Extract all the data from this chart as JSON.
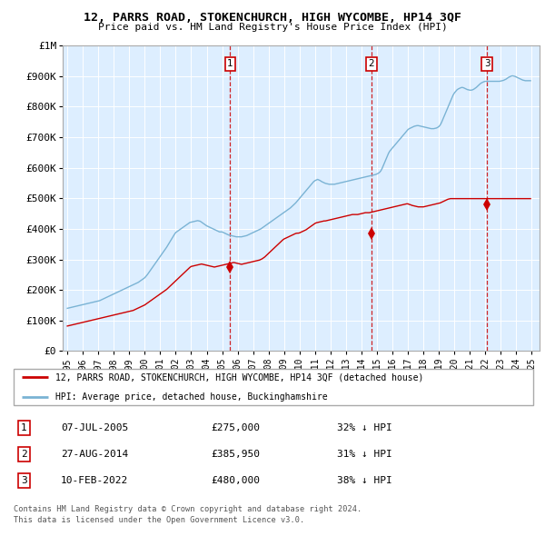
{
  "title": "12, PARRS ROAD, STOKENCHURCH, HIGH WYCOMBE, HP14 3QF",
  "subtitle": "Price paid vs. HM Land Registry's House Price Index (HPI)",
  "legend_red": "12, PARRS ROAD, STOKENCHURCH, HIGH WYCOMBE, HP14 3QF (detached house)",
  "legend_blue": "HPI: Average price, detached house, Buckinghamshire",
  "footnote1": "Contains HM Land Registry data © Crown copyright and database right 2024.",
  "footnote2": "This data is licensed under the Open Government Licence v3.0.",
  "transactions": [
    {
      "num": 1,
      "date": "07-JUL-2005",
      "price": 275000,
      "pct": "32% ↓ HPI",
      "x_year": 2005.52
    },
    {
      "num": 2,
      "date": "27-AUG-2014",
      "price": 385950,
      "pct": "31% ↓ HPI",
      "x_year": 2014.65
    },
    {
      "num": 3,
      "date": "10-FEB-2022",
      "price": 480000,
      "pct": "38% ↓ HPI",
      "x_year": 2022.12
    }
  ],
  "hpi_color": "#7ab3d4",
  "price_color": "#cc0000",
  "background_chart": "#ddeeff",
  "ylim": [
    0,
    1000000
  ],
  "yticks": [
    0,
    100000,
    200000,
    300000,
    400000,
    500000,
    600000,
    700000,
    800000,
    900000,
    1000000
  ],
  "xlim_start": 1994.7,
  "xlim_end": 2025.5,
  "hpi_monthly": {
    "start_year": 1995,
    "start_month": 1,
    "values": [
      140000,
      141000,
      142000,
      143000,
      144000,
      145000,
      146000,
      147000,
      148000,
      149000,
      150000,
      151000,
      152000,
      153000,
      154000,
      155000,
      156000,
      157000,
      158000,
      159000,
      160000,
      161000,
      162000,
      163000,
      164000,
      165000,
      167000,
      169000,
      171000,
      173000,
      175000,
      177000,
      179000,
      181000,
      183000,
      185000,
      187000,
      189000,
      191000,
      193000,
      195000,
      197000,
      199000,
      201000,
      203000,
      205000,
      207000,
      209000,
      211000,
      213000,
      215000,
      217000,
      219000,
      221000,
      223000,
      225000,
      228000,
      231000,
      234000,
      237000,
      240000,
      245000,
      250000,
      256000,
      262000,
      268000,
      274000,
      280000,
      286000,
      292000,
      298000,
      304000,
      310000,
      316000,
      322000,
      328000,
      334000,
      340000,
      347000,
      354000,
      361000,
      368000,
      375000,
      382000,
      388000,
      391000,
      394000,
      397000,
      400000,
      403000,
      406000,
      409000,
      412000,
      415000,
      418000,
      421000,
      422000,
      423000,
      424000,
      425000,
      426000,
      427000,
      426000,
      425000,
      422000,
      419000,
      416000,
      413000,
      410000,
      408000,
      406000,
      404000,
      402000,
      400000,
      398000,
      396000,
      394000,
      392000,
      390000,
      390000,
      390000,
      388000,
      386000,
      384000,
      382000,
      380000,
      379000,
      378000,
      377000,
      376000,
      375000,
      374000,
      374000,
      374000,
      374000,
      374000,
      375000,
      376000,
      377000,
      378000,
      380000,
      382000,
      384000,
      386000,
      388000,
      390000,
      392000,
      394000,
      396000,
      398000,
      400000,
      403000,
      406000,
      409000,
      412000,
      415000,
      418000,
      421000,
      424000,
      427000,
      430000,
      433000,
      436000,
      439000,
      442000,
      445000,
      448000,
      451000,
      454000,
      457000,
      460000,
      463000,
      466000,
      469000,
      473000,
      477000,
      481000,
      485000,
      490000,
      495000,
      500000,
      505000,
      510000,
      515000,
      520000,
      525000,
      530000,
      535000,
      540000,
      545000,
      550000,
      555000,
      558000,
      560000,
      562000,
      560000,
      558000,
      555000,
      553000,
      551000,
      549000,
      548000,
      547000,
      546000,
      546000,
      546000,
      546000,
      546000,
      547000,
      548000,
      549000,
      550000,
      551000,
      552000,
      553000,
      554000,
      555000,
      556000,
      557000,
      558000,
      559000,
      560000,
      561000,
      562000,
      563000,
      564000,
      565000,
      566000,
      567000,
      568000,
      569000,
      570000,
      571000,
      572000,
      573000,
      574000,
      575000,
      576000,
      577000,
      578000,
      580000,
      582000,
      585000,
      590000,
      598000,
      608000,
      618000,
      628000,
      638000,
      648000,
      655000,
      660000,
      665000,
      670000,
      675000,
      680000,
      685000,
      690000,
      695000,
      700000,
      705000,
      710000,
      715000,
      720000,
      725000,
      728000,
      730000,
      732000,
      734000,
      736000,
      737000,
      738000,
      738000,
      737000,
      736000,
      735000,
      734000,
      733000,
      732000,
      731000,
      730000,
      729000,
      728000,
      728000,
      728000,
      729000,
      730000,
      732000,
      735000,
      740000,
      748000,
      758000,
      768000,
      778000,
      788000,
      798000,
      808000,
      818000,
      828000,
      838000,
      845000,
      850000,
      855000,
      858000,
      860000,
      862000,
      863000,
      862000,
      860000,
      858000,
      856000,
      855000,
      854000,
      854000,
      855000,
      857000,
      860000,
      863000,
      867000,
      871000,
      875000,
      878000,
      880000,
      882000,
      883000,
      883000,
      883000,
      883000,
      883000,
      883000,
      883000,
      883000,
      883000,
      883000,
      883000,
      883000,
      884000,
      885000,
      886000,
      888000,
      890000,
      893000,
      896000,
      898000,
      900000,
      901000,
      900000,
      899000,
      897000,
      895000,
      893000,
      891000,
      889000,
      887000,
      886000,
      885000,
      885000,
      885000,
      885000,
      885000
    ]
  },
  "price_monthly": {
    "start_year": 1995,
    "start_month": 1,
    "values": [
      82000,
      83000,
      84000,
      85000,
      86000,
      87000,
      88000,
      89000,
      90000,
      91000,
      92000,
      93000,
      94000,
      95000,
      96000,
      97000,
      98000,
      99000,
      100000,
      101000,
      102000,
      103000,
      104000,
      105000,
      106000,
      107000,
      108000,
      109000,
      110000,
      111000,
      112000,
      113000,
      114000,
      115000,
      116000,
      117000,
      118000,
      119000,
      120000,
      121000,
      122000,
      123000,
      124000,
      125000,
      126000,
      127000,
      128000,
      129000,
      130000,
      131000,
      132000,
      133000,
      135000,
      137000,
      139000,
      141000,
      143000,
      145000,
      147000,
      149000,
      151000,
      154000,
      157000,
      160000,
      163000,
      166000,
      169000,
      172000,
      175000,
      178000,
      181000,
      184000,
      187000,
      190000,
      193000,
      196000,
      199000,
      202000,
      206000,
      210000,
      214000,
      218000,
      222000,
      226000,
      230000,
      234000,
      238000,
      242000,
      246000,
      250000,
      254000,
      258000,
      262000,
      266000,
      270000,
      274000,
      277000,
      278000,
      279000,
      280000,
      281000,
      282000,
      283000,
      284000,
      285000,
      284000,
      283000,
      282000,
      281000,
      280000,
      279000,
      278000,
      277000,
      276000,
      275000,
      276000,
      277000,
      278000,
      279000,
      280000,
      281000,
      282000,
      283000,
      284000,
      285000,
      286000,
      287000,
      288000,
      289000,
      290000,
      289000,
      288000,
      287000,
      286000,
      285000,
      284000,
      285000,
      286000,
      287000,
      288000,
      289000,
      290000,
      291000,
      292000,
      293000,
      294000,
      295000,
      296000,
      297000,
      298000,
      300000,
      302000,
      305000,
      308000,
      312000,
      316000,
      320000,
      324000,
      328000,
      332000,
      336000,
      340000,
      344000,
      348000,
      352000,
      356000,
      360000,
      364000,
      367000,
      369000,
      371000,
      373000,
      375000,
      377000,
      379000,
      381000,
      383000,
      385000,
      385950,
      385950,
      387000,
      389000,
      391000,
      393000,
      395000,
      397000,
      400000,
      403000,
      406000,
      409000,
      412000,
      415000,
      418000,
      420000,
      421000,
      422000,
      423000,
      424000,
      425000,
      426000,
      426000,
      427000,
      428000,
      429000,
      430000,
      431000,
      432000,
      433000,
      434000,
      435000,
      436000,
      437000,
      438000,
      439000,
      440000,
      441000,
      442000,
      443000,
      444000,
      445000,
      446000,
      447000,
      447000,
      447000,
      447000,
      447000,
      448000,
      449000,
      450000,
      451000,
      452000,
      453000,
      453000,
      453000,
      453000,
      454000,
      455000,
      456000,
      457000,
      458000,
      459000,
      460000,
      461000,
      462000,
      463000,
      464000,
      465000,
      466000,
      467000,
      468000,
      469000,
      470000,
      471000,
      472000,
      473000,
      474000,
      475000,
      476000,
      477000,
      478000,
      479000,
      480000,
      481000,
      482000,
      482000,
      480000,
      479000,
      477000,
      476000,
      475000,
      474000,
      473000,
      472000,
      472000,
      472000,
      472000,
      472000,
      473000,
      474000,
      475000,
      476000,
      477000,
      478000,
      479000,
      480000,
      481000,
      482000,
      483000,
      484000,
      485000,
      487000,
      489000,
      491000,
      493000,
      495000,
      497000,
      498000,
      499000,
      499000,
      499000,
      499000,
      499000,
      499000,
      499000,
      499000,
      499000,
      499000,
      499000,
      499000,
      499000,
      499000,
      499000,
      499000,
      499000,
      499000,
      499000,
      499000,
      499000,
      499000,
      499000,
      499000,
      499000,
      499000,
      499000,
      499000,
      499000,
      499000,
      499000,
      499000,
      499000,
      499000,
      499000,
      499000,
      499000,
      499000,
      499000,
      499000,
      499000,
      499000,
      499000,
      499000,
      499000,
      499000,
      499000,
      499000,
      499000,
      499000,
      499000,
      499000,
      499000,
      499000,
      499000,
      499000,
      499000,
      499000,
      499000,
      499000,
      499000,
      499000,
      499000
    ]
  }
}
